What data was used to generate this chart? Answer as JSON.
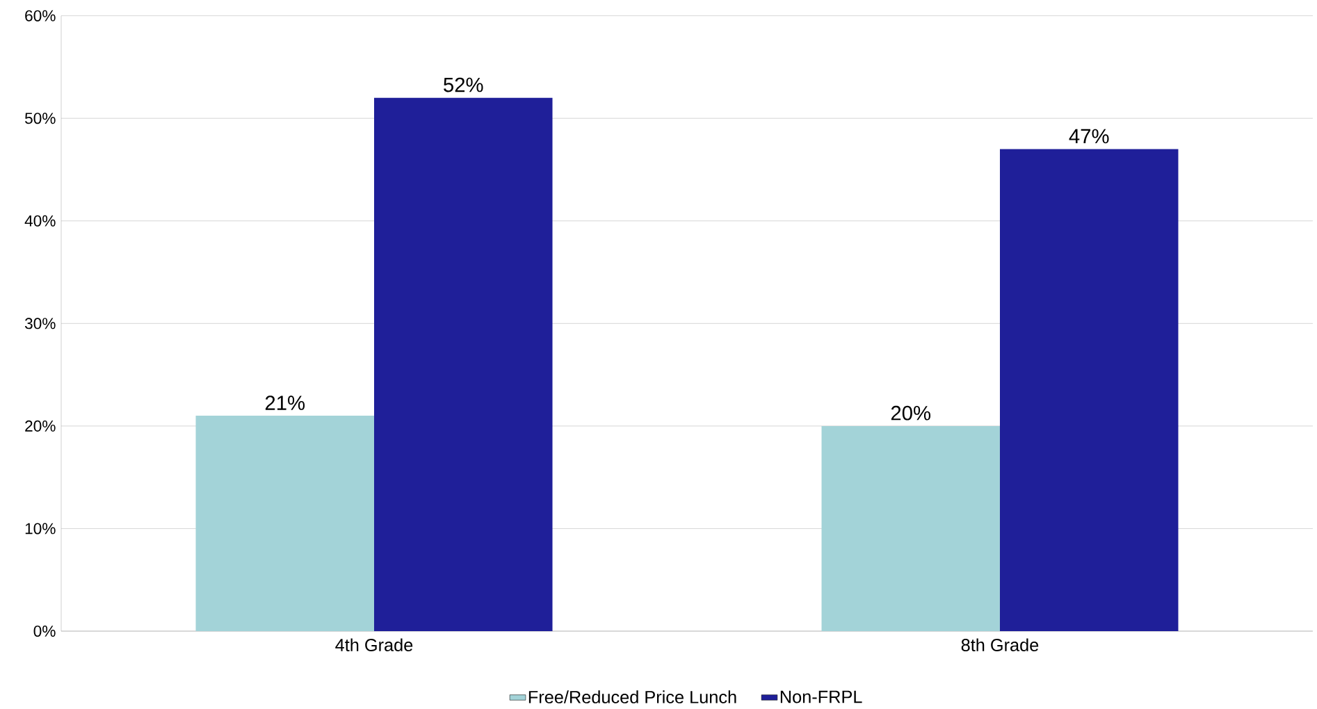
{
  "chart_data": {
    "type": "bar",
    "categories": [
      "4th Grade",
      "8th Grade"
    ],
    "series": [
      {
        "name": "Free/Reduced Price Lunch",
        "color": "#a3d3d8",
        "values": [
          21,
          20
        ],
        "value_labels": [
          "21%",
          "20%"
        ]
      },
      {
        "name": "Non-FRPL",
        "color": "#1f1f99",
        "values": [
          52,
          47
        ],
        "value_labels": [
          "52%",
          "47%"
        ]
      }
    ],
    "ylim": [
      0,
      60
    ],
    "yticks": [
      {
        "value": 0,
        "label": "0%"
      },
      {
        "value": 10,
        "label": "10%"
      },
      {
        "value": 20,
        "label": "20%"
      },
      {
        "value": 30,
        "label": "30%"
      },
      {
        "value": 40,
        "label": "40%"
      },
      {
        "value": 50,
        "label": "50%"
      },
      {
        "value": 60,
        "label": "60%"
      }
    ],
    "grid": "y",
    "legend": "bottom"
  }
}
